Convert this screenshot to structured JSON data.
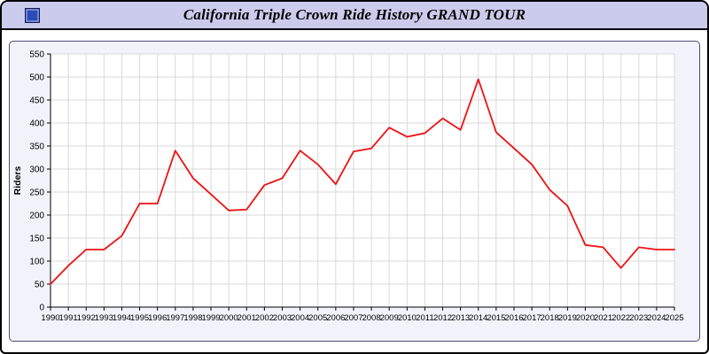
{
  "header": {
    "title": "California Triple Crown Ride History GRAND TOUR",
    "icon": "blue-square-app-icon"
  },
  "colors": {
    "titlebar_bg": "#cbcbec",
    "panel_bg": "#f2f2fa",
    "plot_bg": "#ffffff",
    "grid": "#d9d9d9",
    "axis": "#000000",
    "line": "#ee1111"
  },
  "chart_data": {
    "type": "line",
    "title": "California Triple Crown Ride History GRAND TOUR",
    "xlabel": "",
    "ylabel": "Riders",
    "ylim": [
      0,
      550
    ],
    "ytick_step": 50,
    "grid": true,
    "grid_color": "#d9d9d9",
    "legend": "none",
    "categories": [
      "1990",
      "1991",
      "1992",
      "1993",
      "1994",
      "1995",
      "1996",
      "1997",
      "1998",
      "1999",
      "2000",
      "2001",
      "2002",
      "2003",
      "2004",
      "2005",
      "2006",
      "2007",
      "2008",
      "2009",
      "2010",
      "2011",
      "2012",
      "2013",
      "2014",
      "2015",
      "2016",
      "2017",
      "2018",
      "2019",
      "2020",
      "2021",
      "2022",
      "2023",
      "2024",
      "2025"
    ],
    "series": [
      {
        "name": "Riders",
        "color": "#ee1111",
        "values": [
          50,
          90,
          125,
          125,
          155,
          225,
          225,
          340,
          280,
          245,
          210,
          212,
          265,
          280,
          340,
          310,
          267,
          338,
          345,
          390,
          370,
          378,
          410,
          385,
          495,
          380,
          345,
          310,
          255,
          220,
          135,
          130,
          85,
          130,
          125,
          125
        ]
      }
    ]
  }
}
